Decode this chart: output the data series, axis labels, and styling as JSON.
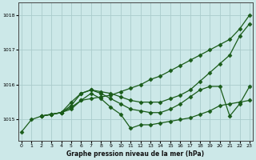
{
  "background_color": "#cce8e8",
  "grid_color": "#aacccc",
  "line_color": "#1a5c1a",
  "xlabel": "Graphe pression niveau de la mer (hPa)",
  "ylim": [
    1014.4,
    1018.35
  ],
  "yticks": [
    1015,
    1016,
    1017,
    1018
  ],
  "xticks": [
    0,
    1,
    2,
    3,
    4,
    5,
    6,
    7,
    8,
    9,
    10,
    11,
    12,
    13,
    14,
    15,
    16,
    17,
    18,
    19,
    20,
    21,
    22,
    23
  ],
  "line1": {
    "x": [
      0,
      1,
      2,
      3,
      4,
      5,
      6,
      7,
      8,
      9,
      10,
      11,
      12,
      13,
      14,
      15,
      16,
      17,
      18,
      19,
      20,
      21,
      22,
      23
    ],
    "y": [
      1014.65,
      1015.0,
      1015.1,
      1015.15,
      1015.2,
      1015.35,
      1015.55,
      1015.6,
      1015.65,
      1015.7,
      1015.8,
      1015.9,
      1016.0,
      1016.15,
      1016.25,
      1016.4,
      1016.55,
      1016.7,
      1016.85,
      1017.0,
      1017.15,
      1017.3,
      1017.6,
      1018.0
    ]
  },
  "line2": {
    "x": [
      2,
      3,
      4,
      5,
      6,
      7,
      8,
      9,
      10,
      11,
      12,
      13,
      14,
      15,
      16,
      17,
      18,
      19,
      20,
      21,
      22,
      23
    ],
    "y": [
      1015.1,
      1015.15,
      1015.2,
      1015.5,
      1015.75,
      1015.85,
      1015.8,
      1015.75,
      1015.65,
      1015.55,
      1015.5,
      1015.5,
      1015.5,
      1015.6,
      1015.7,
      1015.85,
      1016.1,
      1016.35,
      1016.6,
      1016.85,
      1017.4,
      1017.75
    ]
  },
  "line3": {
    "x": [
      2,
      3,
      4,
      5,
      6,
      7,
      8,
      9,
      10,
      11,
      12,
      13,
      14,
      15,
      16,
      17,
      18,
      19,
      20,
      21,
      22,
      23
    ],
    "y": [
      1015.1,
      1015.15,
      1015.2,
      1015.4,
      1015.75,
      1015.85,
      1015.75,
      1015.6,
      1015.45,
      1015.3,
      1015.25,
      1015.2,
      1015.2,
      1015.3,
      1015.45,
      1015.65,
      1015.85,
      1015.95,
      1015.95,
      1015.1,
      1015.45,
      1015.95
    ]
  },
  "line4": {
    "x": [
      2,
      3,
      4,
      5,
      6,
      7,
      8,
      9,
      10,
      11,
      12,
      13,
      14,
      15,
      16,
      17,
      18,
      19,
      20,
      21,
      22,
      23
    ],
    "y": [
      1015.1,
      1015.15,
      1015.2,
      1015.3,
      1015.55,
      1015.75,
      1015.6,
      1015.35,
      1015.15,
      1014.75,
      1014.85,
      1014.85,
      1014.9,
      1014.95,
      1015.0,
      1015.05,
      1015.15,
      1015.25,
      1015.4,
      1015.45,
      1015.5,
      1015.55
    ]
  }
}
